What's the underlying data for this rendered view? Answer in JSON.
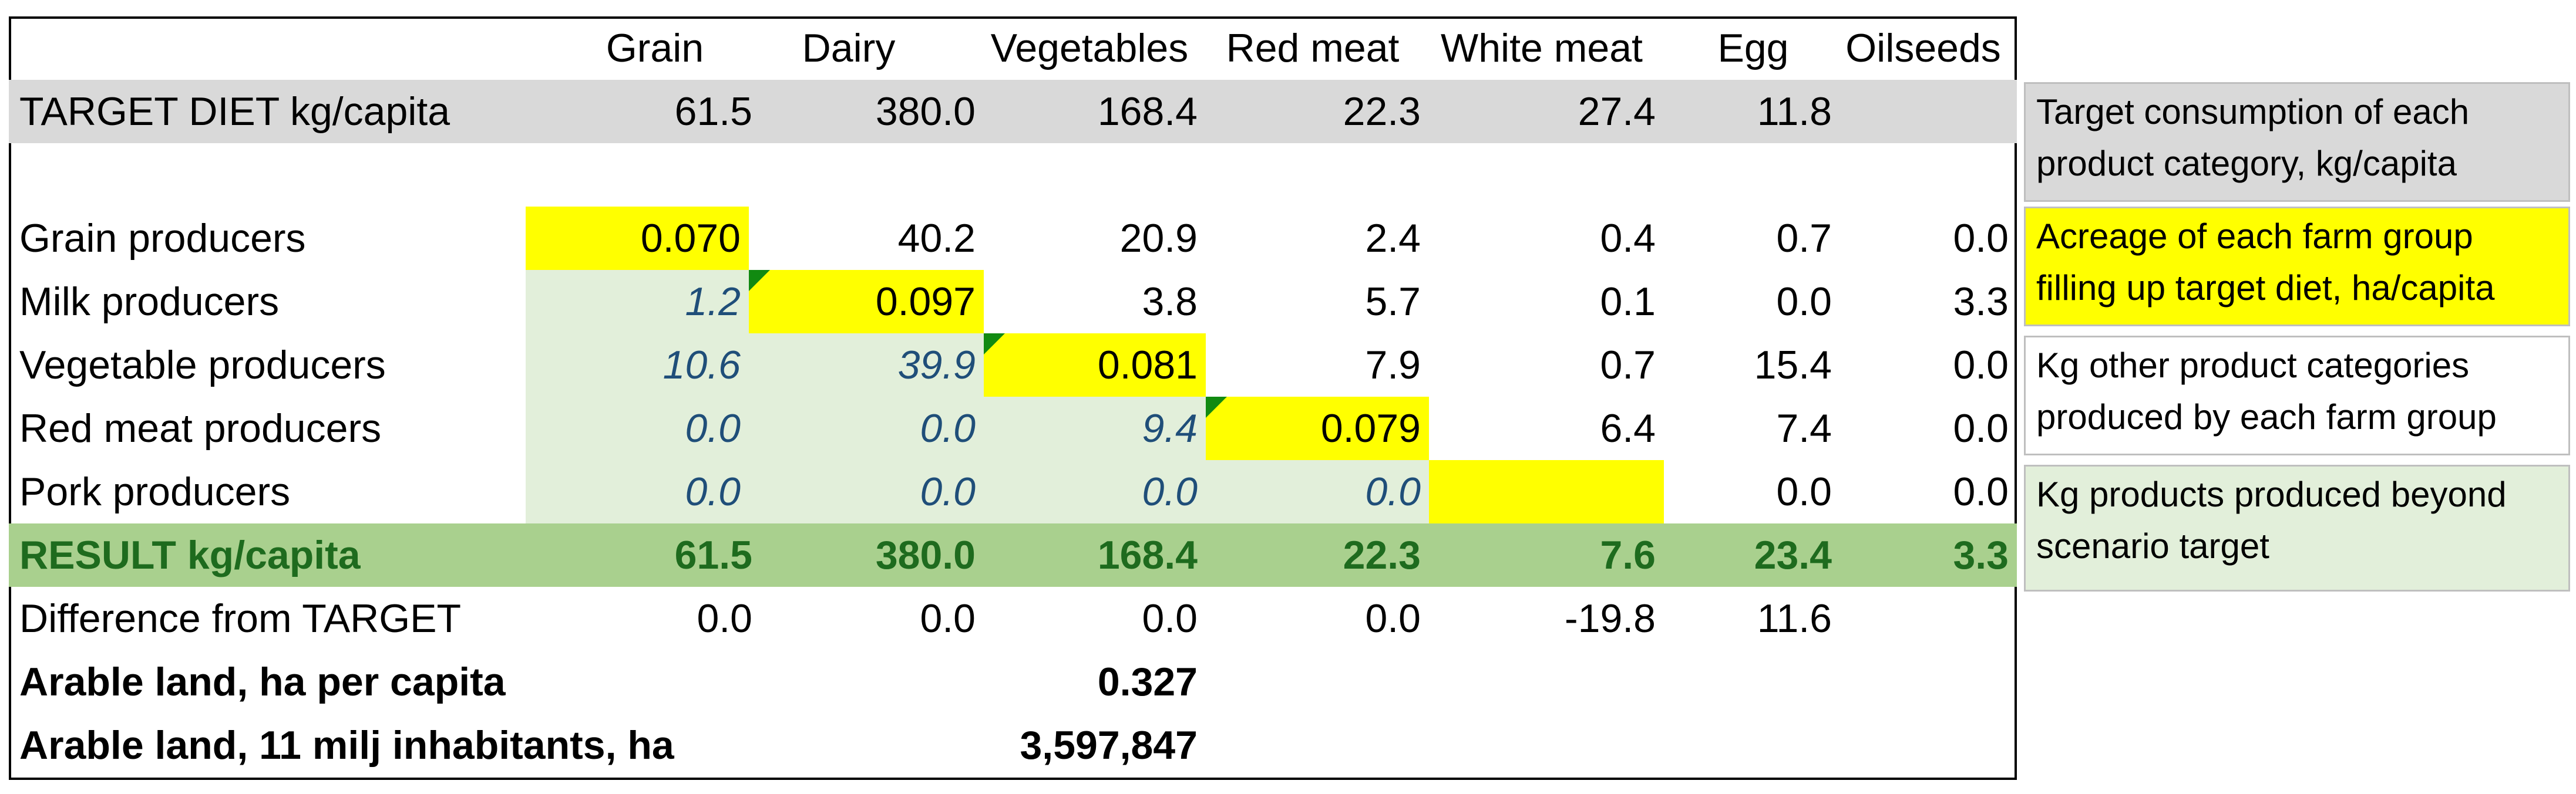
{
  "headers": [
    "Grain",
    "Dairy",
    "Vegetables",
    "Red meat",
    "White meat",
    "Egg",
    "Oilseeds"
  ],
  "target": {
    "label": "TARGET DIET kg/capita",
    "values": [
      "61.5",
      "380.0",
      "168.4",
      "22.3",
      "27.4",
      "11.8",
      ""
    ]
  },
  "producers": [
    {
      "label": "Grain producers",
      "values": [
        "0.070",
        "40.2",
        "20.9",
        "2.4",
        "0.4",
        "0.7",
        "0.0"
      ]
    },
    {
      "label": "Milk producers",
      "values": [
        "1.2",
        "0.097",
        "3.8",
        "5.7",
        "0.1",
        "0.0",
        "3.3"
      ]
    },
    {
      "label": "Vegetable producers",
      "values": [
        "10.6",
        "39.9",
        "0.081",
        "7.9",
        "0.7",
        "15.4",
        "0.0"
      ]
    },
    {
      "label": "Red meat producers",
      "values": [
        "0.0",
        "0.0",
        "9.4",
        "0.079",
        "6.4",
        "7.4",
        "0.0"
      ]
    },
    {
      "label": "Pork producers",
      "values": [
        "0.0",
        "0.0",
        "0.0",
        "0.0",
        "",
        "0.0",
        "0.0"
      ]
    }
  ],
  "result": {
    "label": "RESULT kg/capita",
    "values": [
      "61.5",
      "380.0",
      "168.4",
      "22.3",
      "7.6",
      "23.4",
      "3.3"
    ]
  },
  "difference": {
    "label": "Difference from TARGET",
    "values": [
      "0.0",
      "0.0",
      "0.0",
      "0.0",
      "-19.8",
      "11.6",
      ""
    ]
  },
  "arable_per_capita": {
    "label": "Arable land, ha per capita",
    "value": "0.327"
  },
  "arable_total": {
    "label": "Arable land, 11 milj inhabitants, ha",
    "value": "3,597,847"
  },
  "legend": [
    {
      "text": "Target consumption of each product category, kg/capita",
      "color": "#d9d9d9"
    },
    {
      "text": "Acreage of each farm group filling up target diet, ha/capita",
      "color": "#ffff00"
    },
    {
      "text": "Kg other product categories produced by each farm group",
      "color": "#ffffff"
    },
    {
      "text": "Kg products produced beyond scenario target",
      "color": "#e2efda"
    }
  ],
  "colors": {
    "target_row": "#d9d9d9",
    "result_row": "#a9d08e",
    "highlight": "#ffff00",
    "beyond_target": "#e2efda",
    "result_text": "#1e6b1e",
    "italic_text": "#1f4e79"
  }
}
